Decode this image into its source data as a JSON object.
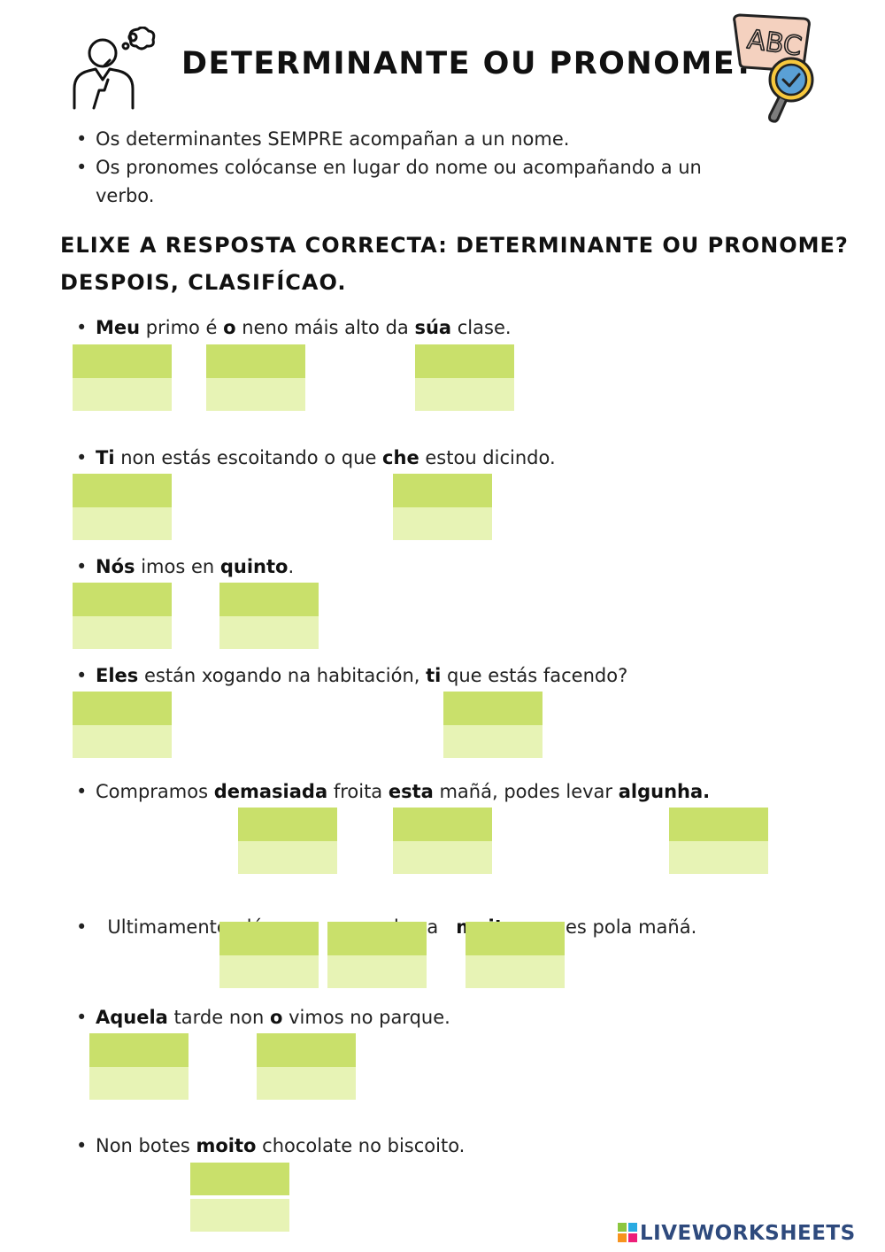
{
  "header": {
    "title": "DETERMINANTE OU PRONOME?",
    "left_icon": "thinking-person-icon",
    "right_icon": "abc-magnifier-icon"
  },
  "rules": [
    "Os determinantes SEMPRE acompañan a un nome.",
    "Os pronomes colócanse en lugar do nome ou acompañando a un",
    "verbo."
  ],
  "instructions": {
    "line1": "ELIXE A RESPOSTA CORRECTA: DETERMINANTE OU PRONOME?",
    "line2": "DESPOIS, CLASIFÍCAO."
  },
  "sentences": {
    "s1": [
      "Meu",
      " primo é ",
      "o",
      " neno máis alto da ",
      "súa",
      " clase."
    ],
    "s2": [
      "Ti",
      " non estás escoitando o que ",
      "che",
      " estou dicindo."
    ],
    "s3": [
      "Nós",
      " imos en ",
      "quinto",
      "."
    ],
    "s4": [
      "Eles",
      " están xogando na habitación, ",
      "ti",
      " que estás facendo?"
    ],
    "s5": [
      "Compramos ",
      "demasiada",
      " froita ",
      "esta",
      " mañá, podes levar ",
      "algunha."
    ],
    "s6": [
      "Ultimamente  dóe",
      "me",
      "      ",
      "a",
      "   cabeza   ",
      "moitas",
      " veces pola mañá."
    ],
    "s7": [
      "Aquela",
      " tarde non ",
      "o",
      " vimos no parque."
    ],
    "s8": [
      "Non botes ",
      "moito",
      " chocolate no biscoito."
    ]
  },
  "colors": {
    "box_top": "#c9e06b",
    "box_bottom": "#e7f3b5",
    "logo": "#2e4a7d"
  },
  "footer": {
    "logo_text": "LIVEWORKSHEETS",
    "logo_icon": "liveworksheets-logo-icon"
  }
}
